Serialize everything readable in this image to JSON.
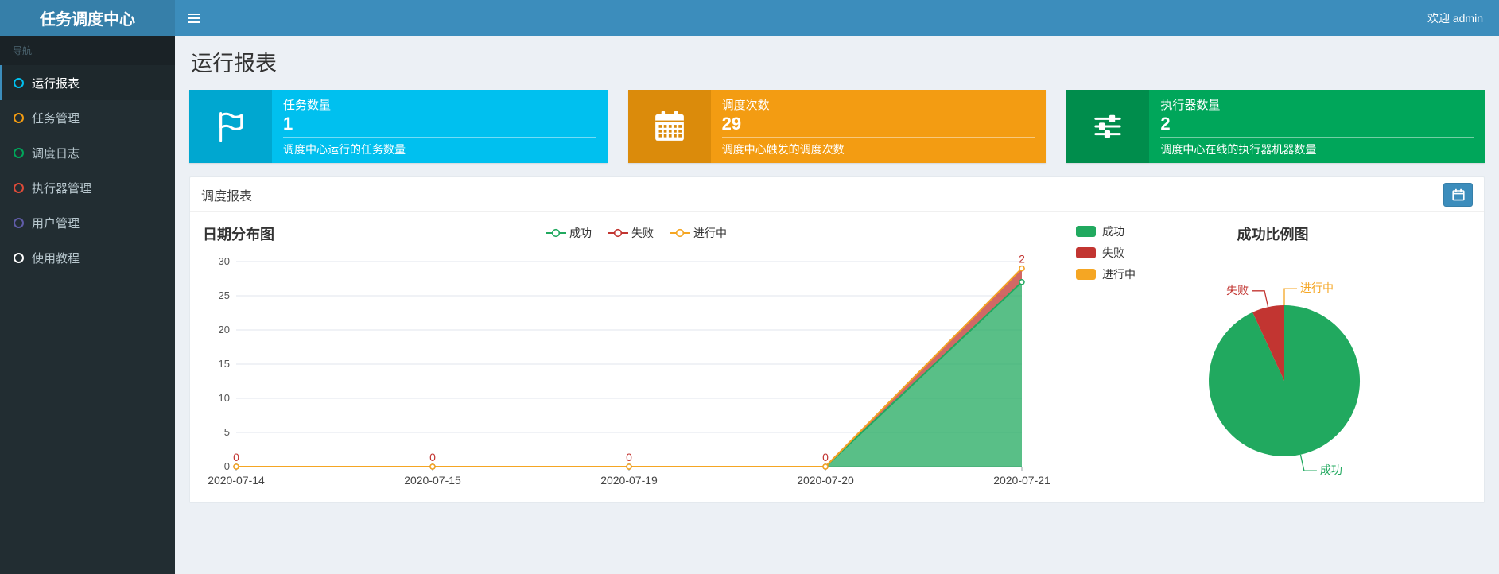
{
  "colors": {
    "success": "#21a95f",
    "fail": "#c23531",
    "running": "#f5a623",
    "navbar": "#3c8dbc",
    "logo_bg": "#367fa9",
    "sidebar_bg": "#222d32",
    "content_bg": "#ecf0f5"
  },
  "header": {
    "logo": "任务调度中心",
    "welcome": "欢迎 admin"
  },
  "sidebar": {
    "section_label": "导航",
    "items": [
      {
        "label": "运行报表",
        "dot_color": "#00c0ef",
        "active": true
      },
      {
        "label": "任务管理",
        "dot_color": "#f39c12",
        "active": false
      },
      {
        "label": "调度日志",
        "dot_color": "#00a65a",
        "active": false
      },
      {
        "label": "执行器管理",
        "dot_color": "#dd4b39",
        "active": false
      },
      {
        "label": "用户管理",
        "dot_color": "#605ca8",
        "active": false
      },
      {
        "label": "使用教程",
        "dot_color": "#ffffff",
        "active": false
      }
    ]
  },
  "page": {
    "title": "运行报表"
  },
  "stat_boxes": [
    {
      "title": "任务数量",
      "value": "1",
      "footer": "调度中心运行的任务数量",
      "color": "#00c0ef",
      "icon_color": "#00a7d0",
      "icon": "flag-icon"
    },
    {
      "title": "调度次数",
      "value": "29",
      "footer": "调度中心触发的调度次数",
      "color": "#f39c12",
      "icon_color": "#db8b0b",
      "icon": "calendar-icon"
    },
    {
      "title": "执行器数量",
      "value": "2",
      "footer": "调度中心在线的执行器机器数量",
      "color": "#00a65a",
      "icon_color": "#008d4c",
      "icon": "sliders-icon"
    }
  ],
  "panel": {
    "title": "调度报表"
  },
  "chart_data": [
    {
      "type": "area",
      "title": "日期分布图",
      "x": [
        "2020-07-14",
        "2020-07-15",
        "2020-07-19",
        "2020-07-20",
        "2020-07-21"
      ],
      "series": [
        {
          "name": "成功",
          "color": "#21a95f",
          "values": [
            0,
            0,
            0,
            0,
            27
          ],
          "show_labels": false
        },
        {
          "name": "失败",
          "color": "#c23531",
          "values": [
            0,
            0,
            0,
            0,
            2
          ],
          "show_labels": true
        },
        {
          "name": "进行中",
          "color": "#f5a623",
          "values": [
            0,
            0,
            0,
            0,
            0
          ],
          "show_labels": false
        }
      ],
      "stacked": true,
      "ylim": [
        0,
        30
      ],
      "yticks": [
        0,
        5,
        10,
        15,
        20,
        25,
        30
      ],
      "legend": [
        "成功",
        "失败",
        "进行中"
      ],
      "legend_position": "top-center",
      "grid": true
    },
    {
      "type": "pie",
      "title": "成功比例图",
      "legend": [
        "成功",
        "失败",
        "进行中"
      ],
      "legend_position": "left",
      "slices": [
        {
          "name": "成功",
          "value": 27,
          "color": "#21a95f"
        },
        {
          "name": "失败",
          "value": 2,
          "color": "#c23531"
        },
        {
          "name": "进行中",
          "value": 0,
          "color": "#f5a623"
        }
      ]
    }
  ]
}
